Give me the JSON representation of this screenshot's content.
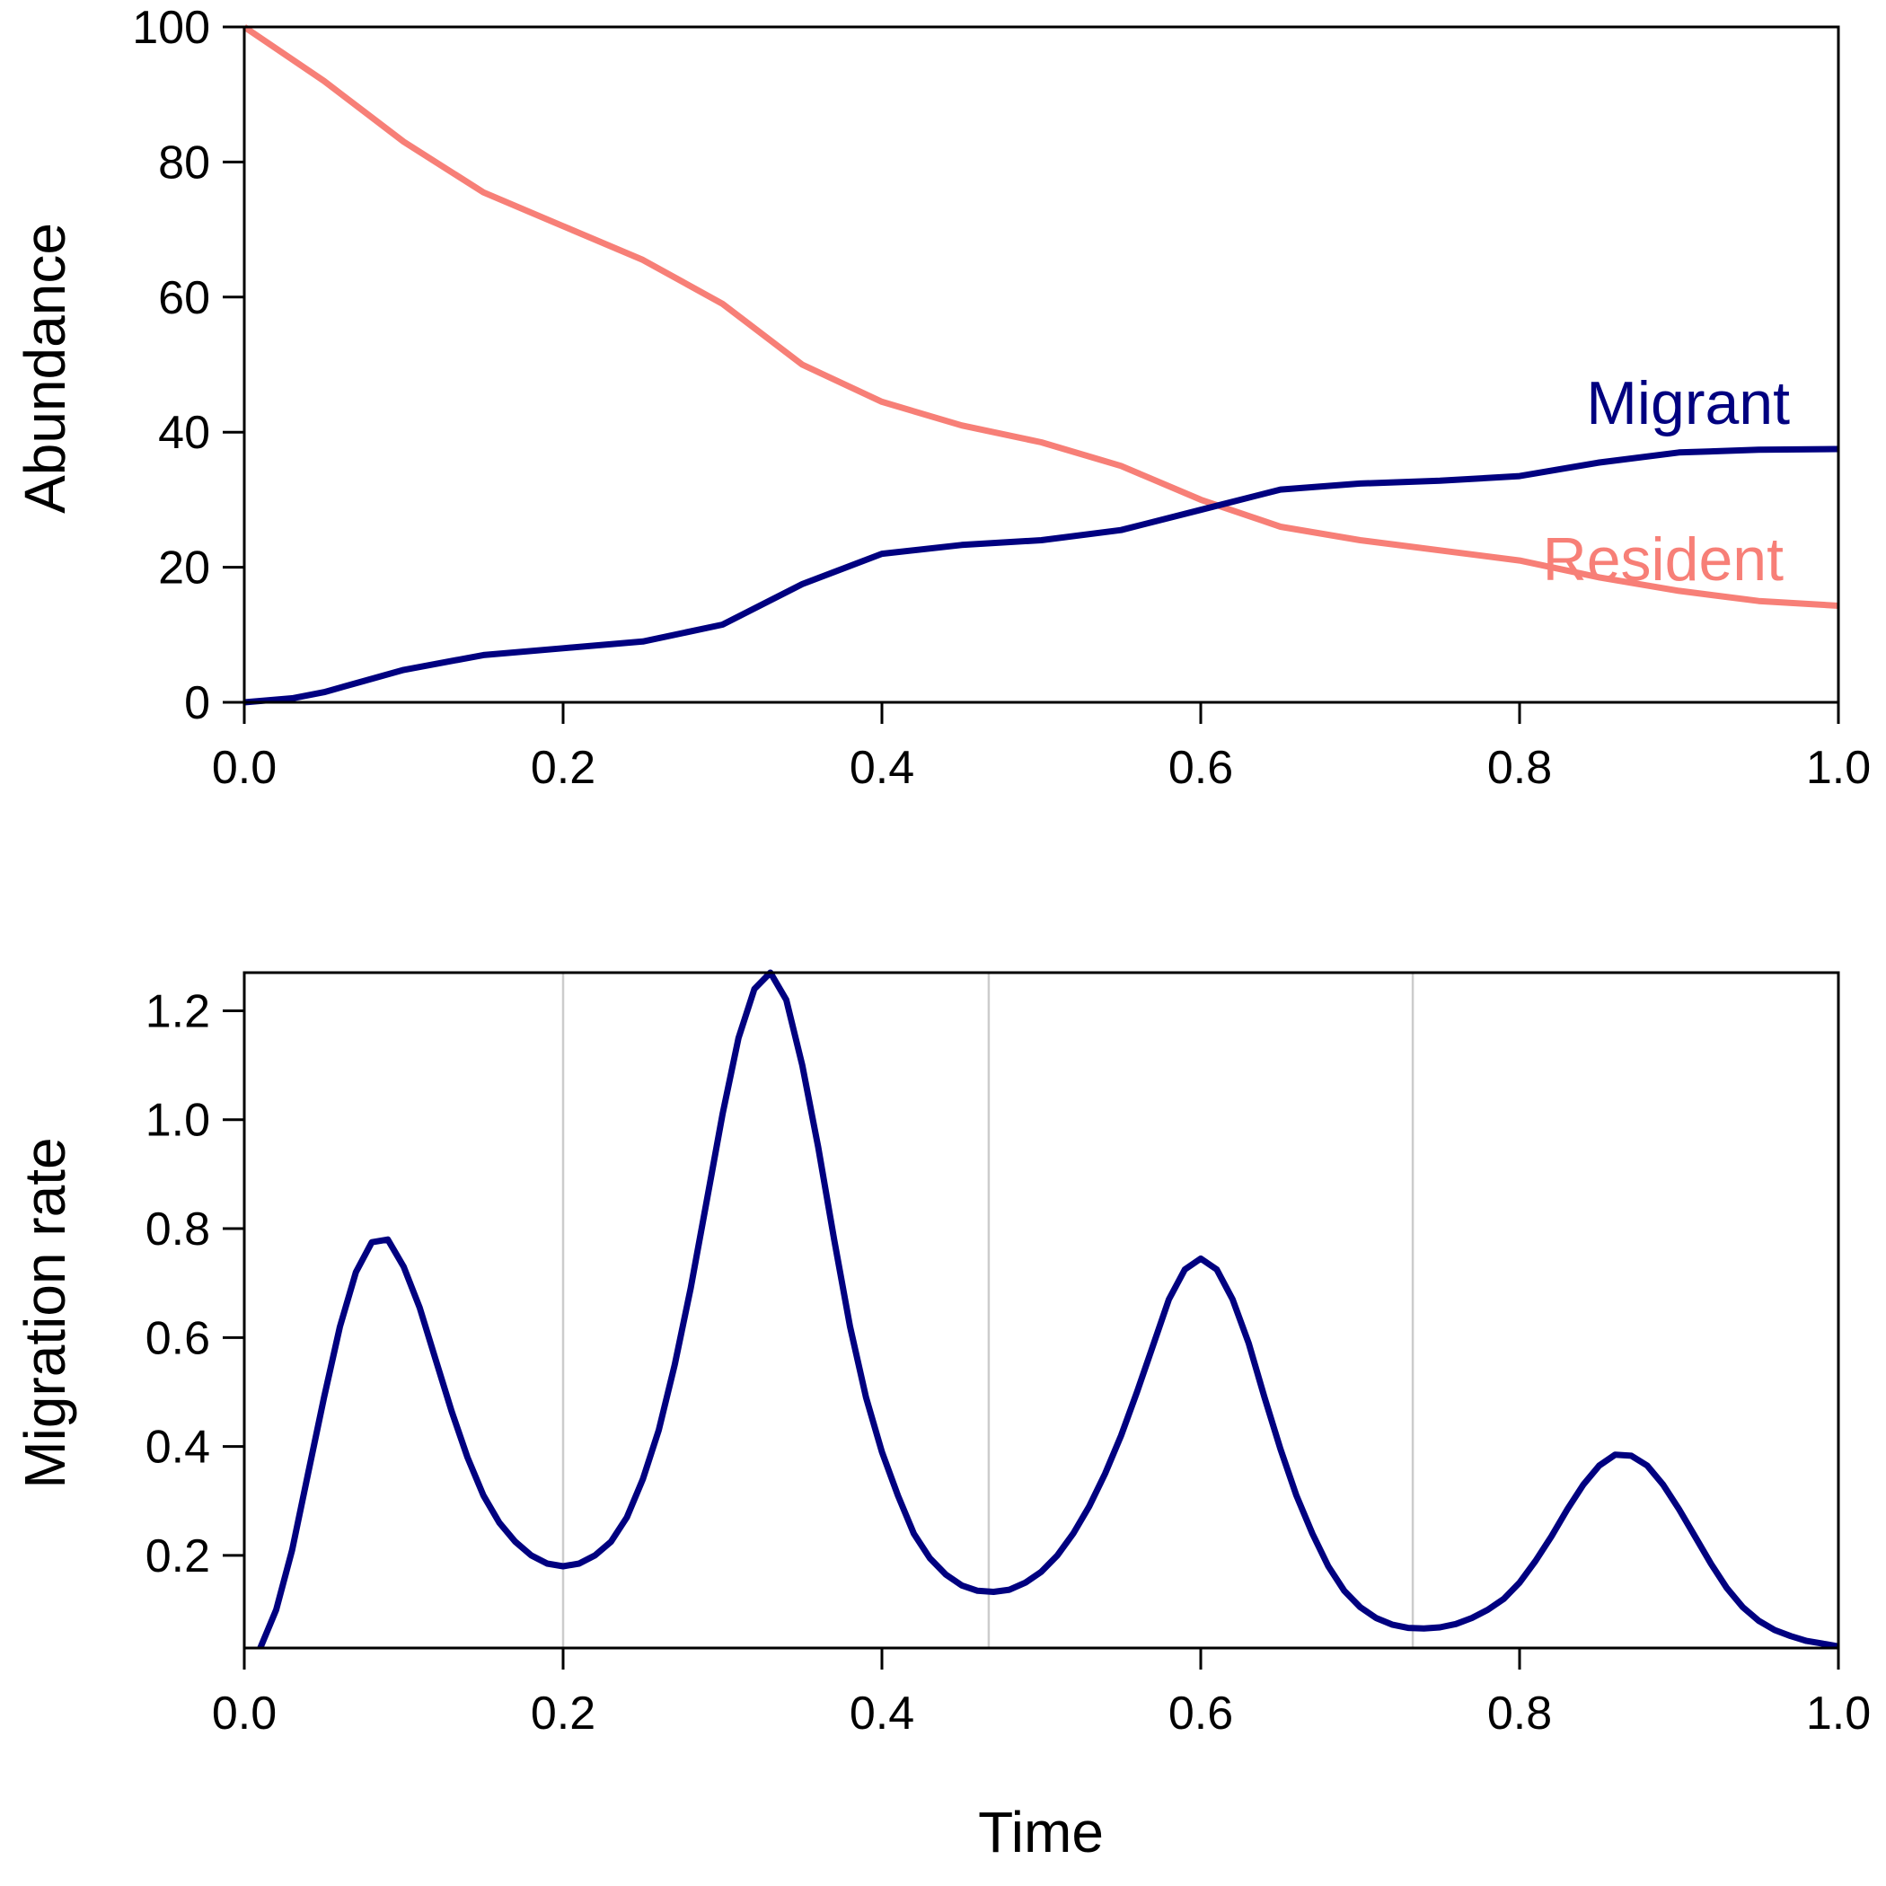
{
  "chart_data": [
    {
      "type": "line",
      "xlabel": "",
      "ylabel": "Abundance",
      "xlim": [
        0,
        1
      ],
      "ylim": [
        0,
        100
      ],
      "grid": false,
      "x_ticks": [
        "0.0",
        "0.2",
        "0.4",
        "0.6",
        "0.8",
        "1.0"
      ],
      "y_ticks": [
        "0",
        "20",
        "40",
        "60",
        "80",
        "100"
      ],
      "series": [
        {
          "name": "Resident",
          "color": "#f77f77",
          "x": [
            0,
            0.05,
            0.1,
            0.15,
            0.2,
            0.25,
            0.3,
            0.35,
            0.4,
            0.45,
            0.5,
            0.55,
            0.6,
            0.65,
            0.7,
            0.75,
            0.8,
            0.85,
            0.9,
            0.95,
            1.0
          ],
          "y": [
            100,
            92,
            83,
            75.5,
            70.5,
            65.5,
            59,
            50,
            44.5,
            41,
            38.5,
            35,
            30,
            26,
            24,
            22.5,
            21,
            18.5,
            16.5,
            15,
            14.3
          ]
        },
        {
          "name": "Migrant",
          "color": "#000080",
          "x": [
            0,
            0.03,
            0.05,
            0.1,
            0.15,
            0.2,
            0.25,
            0.3,
            0.35,
            0.4,
            0.45,
            0.5,
            0.55,
            0.6,
            0.65,
            0.7,
            0.75,
            0.8,
            0.85,
            0.9,
            0.95,
            1.0
          ],
          "y": [
            0,
            0.6,
            1.5,
            4.8,
            7,
            8,
            9,
            11.5,
            17.5,
            22,
            23.3,
            24,
            25.5,
            28.5,
            31.5,
            32.4,
            32.8,
            33.5,
            35.5,
            37,
            37.4,
            37.5
          ]
        }
      ]
    },
    {
      "type": "line",
      "xlabel": "Time",
      "ylabel": "Migration rate",
      "xlim": [
        0,
        1
      ],
      "ylim": [
        0.03,
        1.27
      ],
      "grid": false,
      "x_ticks": [
        "0.0",
        "0.2",
        "0.4",
        "0.6",
        "0.8",
        "1.0"
      ],
      "y_ticks": [
        "0.2",
        "0.4",
        "0.6",
        "0.8",
        "1.0",
        "1.2"
      ],
      "vertical_lines": [
        0.2,
        0.467,
        0.733
      ],
      "series": [
        {
          "name": "",
          "color": "#000080",
          "x": [
            0.01,
            0.02,
            0.03,
            0.04,
            0.05,
            0.06,
            0.07,
            0.08,
            0.09,
            0.1,
            0.11,
            0.12,
            0.13,
            0.14,
            0.15,
            0.16,
            0.17,
            0.18,
            0.19,
            0.2,
            0.21,
            0.22,
            0.23,
            0.24,
            0.25,
            0.26,
            0.27,
            0.28,
            0.29,
            0.3,
            0.31,
            0.32,
            0.33,
            0.34,
            0.35,
            0.36,
            0.37,
            0.38,
            0.39,
            0.4,
            0.41,
            0.42,
            0.43,
            0.44,
            0.45,
            0.46,
            0.47,
            0.48,
            0.49,
            0.5,
            0.51,
            0.52,
            0.53,
            0.54,
            0.55,
            0.56,
            0.57,
            0.58,
            0.59,
            0.6,
            0.61,
            0.62,
            0.63,
            0.64,
            0.65,
            0.66,
            0.67,
            0.68,
            0.69,
            0.7,
            0.71,
            0.72,
            0.73,
            0.74,
            0.75,
            0.76,
            0.77,
            0.78,
            0.79,
            0.8,
            0.81,
            0.82,
            0.83,
            0.84,
            0.85,
            0.86,
            0.87,
            0.88,
            0.89,
            0.9,
            0.91,
            0.92,
            0.93,
            0.94,
            0.95,
            0.96,
            0.97,
            0.98,
            0.99,
            1.0
          ],
          "y": [
            0.03,
            0.1,
            0.21,
            0.35,
            0.49,
            0.62,
            0.72,
            0.775,
            0.78,
            0.73,
            0.655,
            0.56,
            0.465,
            0.38,
            0.31,
            0.26,
            0.225,
            0.2,
            0.185,
            0.18,
            0.185,
            0.2,
            0.225,
            0.27,
            0.34,
            0.43,
            0.55,
            0.69,
            0.85,
            1.01,
            1.15,
            1.24,
            1.27,
            1.22,
            1.1,
            0.95,
            0.78,
            0.62,
            0.49,
            0.39,
            0.31,
            0.24,
            0.195,
            0.165,
            0.145,
            0.135,
            0.133,
            0.137,
            0.15,
            0.17,
            0.2,
            0.24,
            0.29,
            0.35,
            0.42,
            0.5,
            0.585,
            0.67,
            0.725,
            0.745,
            0.725,
            0.67,
            0.59,
            0.49,
            0.395,
            0.31,
            0.24,
            0.18,
            0.135,
            0.105,
            0.085,
            0.073,
            0.067,
            0.066,
            0.068,
            0.074,
            0.085,
            0.1,
            0.12,
            0.15,
            0.19,
            0.235,
            0.285,
            0.33,
            0.365,
            0.385,
            0.383,
            0.365,
            0.33,
            0.285,
            0.235,
            0.185,
            0.14,
            0.105,
            0.08,
            0.063,
            0.052,
            0.043,
            0.038,
            0.033
          ]
        }
      ]
    }
  ],
  "labels": {
    "top_ylabel": "Abundance",
    "bottom_ylabel": "Migration rate",
    "bottom_xlabel": "Time",
    "migrant_label": "Migrant",
    "resident_label": "Resident"
  }
}
